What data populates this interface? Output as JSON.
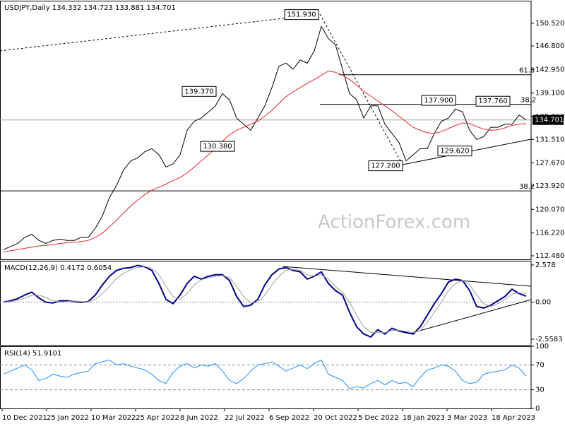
{
  "chart_data": [
    {
      "type": "line",
      "title": "USDJPY,Daily 134.332 134.723 133.881 134.701",
      "ylim": [
        111.9,
        154.2
      ],
      "yticks": [
        {
          "value": 150.52,
          "label": "150.520"
        },
        {
          "value": 146.8,
          "label": "146.800"
        },
        {
          "value": 142.95,
          "label": "142.950"
        },
        {
          "value": 139.1,
          "label": "139.100"
        },
        {
          "value": 135.26,
          "label": "135.260"
        },
        {
          "value": 131.51,
          "label": "131.510"
        },
        {
          "value": 127.67,
          "label": "127.670"
        },
        {
          "value": 123.92,
          "label": "123.920"
        },
        {
          "value": 120.07,
          "label": "120.070"
        },
        {
          "value": 116.22,
          "label": "116.220"
        },
        {
          "value": 112.48,
          "label": "112.480"
        }
      ],
      "series": [
        {
          "color": "#000000",
          "line_width": 1,
          "values": [
            113.5,
            114,
            114.5,
            115.5,
            116,
            115,
            114.5,
            115,
            115.2,
            115,
            115,
            115.5,
            115.5,
            117,
            119,
            122,
            124,
            126.5,
            128,
            128.5,
            129.5,
            130,
            129,
            127,
            127.5,
            129,
            133,
            134.5,
            135,
            136,
            137,
            139,
            138,
            135,
            134,
            133,
            135,
            137,
            140,
            143.5,
            144,
            143,
            144.5,
            144,
            146,
            150,
            148,
            147,
            143,
            139,
            138,
            135,
            137,
            137,
            134,
            132.5,
            131,
            128,
            129,
            130,
            130,
            132.5,
            134.5,
            135,
            136.5,
            136,
            133,
            131.5,
            132,
            133.5,
            133.5,
            134,
            134,
            135.5,
            134.701
          ]
        },
        {
          "color": "#e8262b",
          "line_width": 1,
          "values": [
            113.1,
            113.3,
            113.5,
            113.7,
            113.9,
            114.1,
            114.2,
            114.3,
            114.5,
            114.6,
            114.7,
            114.8,
            115,
            115.5,
            116.2,
            117.2,
            118.3,
            119.5,
            120.6,
            121.6,
            122.5,
            123.2,
            123.7,
            124.2,
            124.8,
            125.3,
            126,
            127,
            128,
            129,
            130,
            131.2,
            132.3,
            133,
            133.5,
            134,
            134.5,
            135.3,
            136.3,
            137.4,
            138.5,
            139.3,
            140,
            140.7,
            141.3,
            142,
            142.7,
            142.5,
            142,
            141.3,
            140.4,
            139.4,
            138.6,
            137.8,
            137,
            136.2,
            135.3,
            134.4,
            133.5,
            133,
            132.6,
            132.5,
            132.8,
            133.3,
            133.8,
            134.2,
            134.1,
            133.6,
            133.2,
            133,
            133.1,
            133.4,
            133.8,
            134,
            134.1
          ]
        }
      ],
      "last_price": 134.701,
      "annotations": [
        {
          "value": 151.93,
          "label": "151.930"
        },
        {
          "value": 139.37,
          "label": "139.370"
        },
        {
          "value": 130.38,
          "label": "130.380"
        },
        {
          "value": 137.9,
          "label": "137.900"
        },
        {
          "value": 137.76,
          "label": "137.760"
        },
        {
          "value": 129.62,
          "label": "129.620"
        },
        {
          "value": 127.2,
          "label": "127.200"
        }
      ],
      "fib_levels": [
        {
          "label": "61.8",
          "price": 142.1
        },
        {
          "label": "38.2",
          "price": 137.25
        },
        {
          "label": "38.2",
          "price": 123.1
        }
      ],
      "watermark": "ActionForex.com"
    },
    {
      "type": "line",
      "title": "MACD(12,26,9) 0.4172 0.6054",
      "ylim": [
        -2.95,
        2.87
      ],
      "yticks": [
        2.578,
        {
          "value": 0,
          "label": "0.00"
        },
        -2.5583
      ],
      "zero_line": true,
      "series": [
        {
          "color": "#00008b",
          "line_width": 2,
          "values": [
            0,
            0.1,
            0.25,
            0.5,
            0.7,
            0.3,
            0,
            -0.05,
            0.1,
            0.1,
            0.05,
            0,
            0.05,
            0.5,
            1.2,
            1.8,
            2.2,
            2.35,
            2.4,
            2.55,
            2.45,
            2.2,
            1.3,
            0.2,
            -0.1,
            0.5,
            1.3,
            1.8,
            1.6,
            1.8,
            1.9,
            1.9,
            1.5,
            0.4,
            -0.3,
            -0.2,
            0.2,
            1.2,
            1.9,
            2.3,
            2.4,
            2.2,
            2.1,
            1.6,
            1.8,
            2.1,
            1.3,
            0.8,
            0.5,
            -0.7,
            -1.7,
            -2.2,
            -2.4,
            -1.9,
            -2.2,
            -1.8,
            -2,
            -2.1,
            -2.2,
            -1.7,
            -0.9,
            -0.1,
            0.6,
            1.4,
            1.6,
            1.5,
            0.8,
            -0.3,
            -0.4,
            -0.2,
            0.1,
            0.4,
            0.9,
            0.6,
            0.4172
          ]
        },
        {
          "color": "#a0a0a0",
          "line_width": 1,
          "values": [
            0,
            0.05,
            0.12,
            0.28,
            0.48,
            0.5,
            0.33,
            0.1,
            0.02,
            0.05,
            0.08,
            0.05,
            0.03,
            0.2,
            0.6,
            1.1,
            1.65,
            2,
            2.25,
            2.4,
            2.47,
            2.35,
            1.9,
            1.1,
            0.4,
            0.2,
            0.6,
            1.2,
            1.55,
            1.7,
            1.8,
            1.85,
            1.7,
            1.1,
            0.4,
            -0.05,
            0,
            0.5,
            1.2,
            1.8,
            2.2,
            2.3,
            2.2,
            1.9,
            1.8,
            1.9,
            1.6,
            1.1,
            0.7,
            0,
            -0.9,
            -1.7,
            -2.1,
            -2.1,
            -2.1,
            -1.95,
            -1.95,
            -2,
            -2.1,
            -1.95,
            -1.4,
            -0.7,
            0,
            0.8,
            1.3,
            1.5,
            1.2,
            0.5,
            -0.1,
            -0.3,
            -0.1,
            0.2,
            0.55,
            0.65,
            0.6054
          ]
        }
      ]
    },
    {
      "type": "line",
      "title": "RSI(14) 51.9101",
      "ylim": [
        0,
        100
      ],
      "yticks": [
        100,
        70,
        30,
        0
      ],
      "guide_lines": true,
      "series": [
        {
          "color": "#1e90ff",
          "line_width": 1,
          "values": [
            55,
            60,
            65,
            70,
            62,
            45,
            48,
            55,
            52,
            50,
            55,
            58,
            60,
            72,
            75,
            78,
            70,
            72,
            68,
            65,
            62,
            55,
            45,
            40,
            58,
            68,
            72,
            65,
            70,
            68,
            72,
            60,
            45,
            40,
            48,
            60,
            70,
            72,
            75,
            68,
            60,
            65,
            70,
            64,
            72,
            78,
            55,
            50,
            45,
            32,
            35,
            33,
            40,
            45,
            38,
            45,
            40,
            42,
            35,
            50,
            62,
            65,
            70,
            68,
            60,
            45,
            40,
            42,
            55,
            58,
            60,
            62,
            70,
            65,
            51.9101
          ]
        }
      ],
      "xtick_labels": [
        "10 Dec 2021",
        "25 Jan 2022",
        "10 Mar 2022",
        "25 Apr 2022",
        "8 Jun 2022",
        "22 Jul 2022",
        "6 Sep 2022",
        "20 Oct 2022",
        "5 Dec 2022",
        "18 Jan 2023",
        "3 Mar 2023",
        "18 Apr 2023"
      ]
    }
  ]
}
